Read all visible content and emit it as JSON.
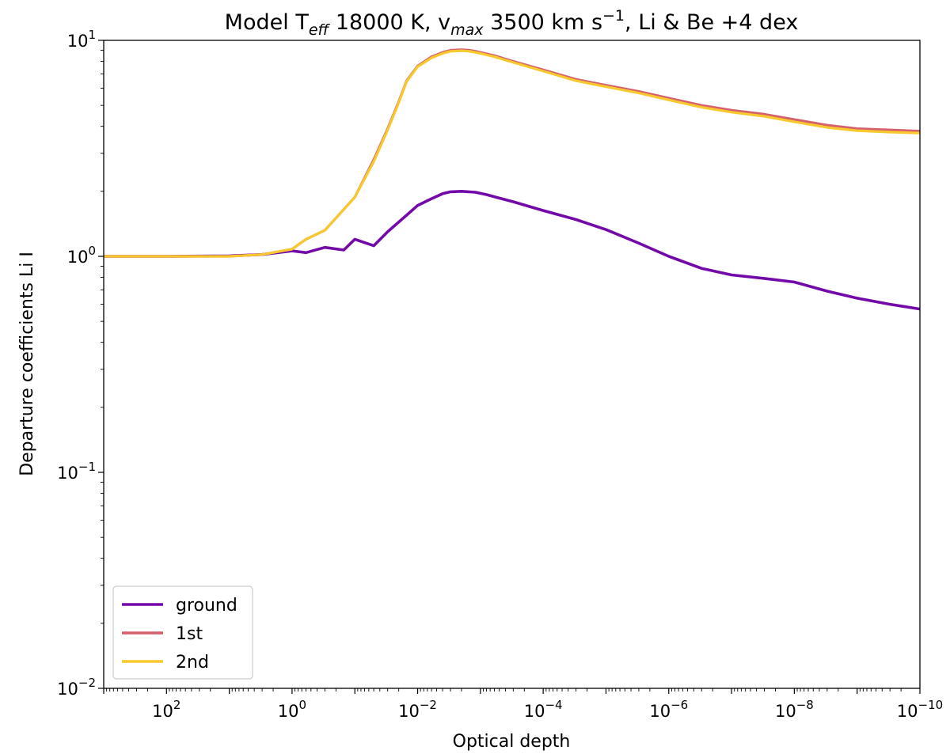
{
  "chart_data": {
    "type": "line",
    "title": {
      "prefix": "Model T",
      "teff_sub": "eff",
      "mid1": " 18000 K, v",
      "vmax_sub": "max",
      "mid2": " 3500 km s",
      "exp": "−1",
      "suffix": ", Li & Be +4 dex"
    },
    "xlabel": "Optical depth",
    "ylabel": "Departure coefficients Li I",
    "xscale": "log",
    "yscale": "log",
    "x_reversed": true,
    "xlim": [
      1000,
      1e-10
    ],
    "ylim": [
      0.01,
      10
    ],
    "x_ticks": [
      {
        "value": 100,
        "base": "10",
        "exp": "2"
      },
      {
        "value": 1,
        "base": "10",
        "exp": "0"
      },
      {
        "value": 0.01,
        "base": "10",
        "exp": "−2"
      },
      {
        "value": 0.0001,
        "base": "10",
        "exp": "−4"
      },
      {
        "value": 1e-06,
        "base": "10",
        "exp": "−6"
      },
      {
        "value": 1e-08,
        "base": "10",
        "exp": "−8"
      },
      {
        "value": 1e-10,
        "base": "10",
        "exp": "−10"
      }
    ],
    "y_ticks": [
      {
        "value": 10,
        "base": "10",
        "exp": "1"
      },
      {
        "value": 1,
        "base": "10",
        "exp": "0"
      },
      {
        "value": 0.1,
        "base": "10",
        "exp": "−1"
      },
      {
        "value": 0.01,
        "base": "10",
        "exp": "−2"
      }
    ],
    "legend_position": "lower-left",
    "series": [
      {
        "name": "ground",
        "color": "#7209a8",
        "x": [
          1000,
          100,
          10,
          3,
          1,
          0.6,
          0.3,
          0.15,
          0.1,
          0.05,
          0.03,
          0.015,
          0.01,
          0.006,
          0.004,
          0.003,
          0.002,
          0.0012,
          0.0008,
          0.0005,
          0.0003,
          0.0001,
          3e-05,
          1e-05,
          3e-06,
          1e-06,
          3e-07,
          1e-07,
          3e-08,
          1e-08,
          3e-09,
          1e-09,
          3e-10,
          1e-10
        ],
        "y": [
          1.0,
          1.0,
          1.005,
          1.02,
          1.06,
          1.04,
          1.1,
          1.07,
          1.2,
          1.12,
          1.3,
          1.55,
          1.72,
          1.85,
          1.95,
          1.99,
          2.0,
          1.98,
          1.93,
          1.86,
          1.79,
          1.63,
          1.48,
          1.33,
          1.15,
          1.0,
          0.88,
          0.82,
          0.79,
          0.76,
          0.69,
          0.64,
          0.6,
          0.57
        ]
      },
      {
        "name": "1st",
        "color": "#d55f6c",
        "x": [
          1000,
          100,
          10,
          3,
          1,
          0.6,
          0.3,
          0.15,
          0.1,
          0.05,
          0.03,
          0.02,
          0.015,
          0.01,
          0.006,
          0.004,
          0.003,
          0.002,
          0.0015,
          0.0012,
          0.001,
          0.0006,
          0.0003,
          0.0001,
          3e-05,
          1e-05,
          3e-06,
          1e-06,
          3e-07,
          1e-07,
          3e-08,
          1e-08,
          3e-09,
          1e-09,
          3e-10,
          1e-10
        ],
        "y": [
          1.0,
          1.0,
          1.0,
          1.02,
          1.08,
          1.2,
          1.32,
          1.65,
          1.88,
          2.8,
          3.9,
          5.2,
          6.5,
          7.6,
          8.4,
          8.8,
          9.0,
          9.05,
          9.0,
          8.9,
          8.8,
          8.5,
          8.0,
          7.3,
          6.6,
          6.2,
          5.8,
          5.4,
          5.0,
          4.75,
          4.55,
          4.3,
          4.05,
          3.9,
          3.85,
          3.8
        ]
      },
      {
        "name": "2nd",
        "color": "#f8c92c",
        "x": [
          1000,
          100,
          10,
          3,
          1,
          0.6,
          0.3,
          0.15,
          0.1,
          0.05,
          0.03,
          0.02,
          0.015,
          0.01,
          0.006,
          0.004,
          0.003,
          0.002,
          0.0015,
          0.0012,
          0.001,
          0.0006,
          0.0003,
          0.0001,
          3e-05,
          1e-05,
          3e-06,
          1e-06,
          3e-07,
          1e-07,
          3e-08,
          1e-08,
          3e-09,
          1e-09,
          3e-10,
          1e-10
        ],
        "y": [
          1.0,
          1.0,
          1.0,
          1.02,
          1.08,
          1.2,
          1.32,
          1.65,
          1.88,
          2.75,
          3.85,
          5.15,
          6.45,
          7.55,
          8.3,
          8.7,
          8.9,
          8.95,
          8.9,
          8.8,
          8.7,
          8.4,
          7.9,
          7.2,
          6.5,
          6.1,
          5.7,
          5.3,
          4.9,
          4.65,
          4.45,
          4.2,
          3.95,
          3.82,
          3.76,
          3.72
        ]
      }
    ]
  }
}
